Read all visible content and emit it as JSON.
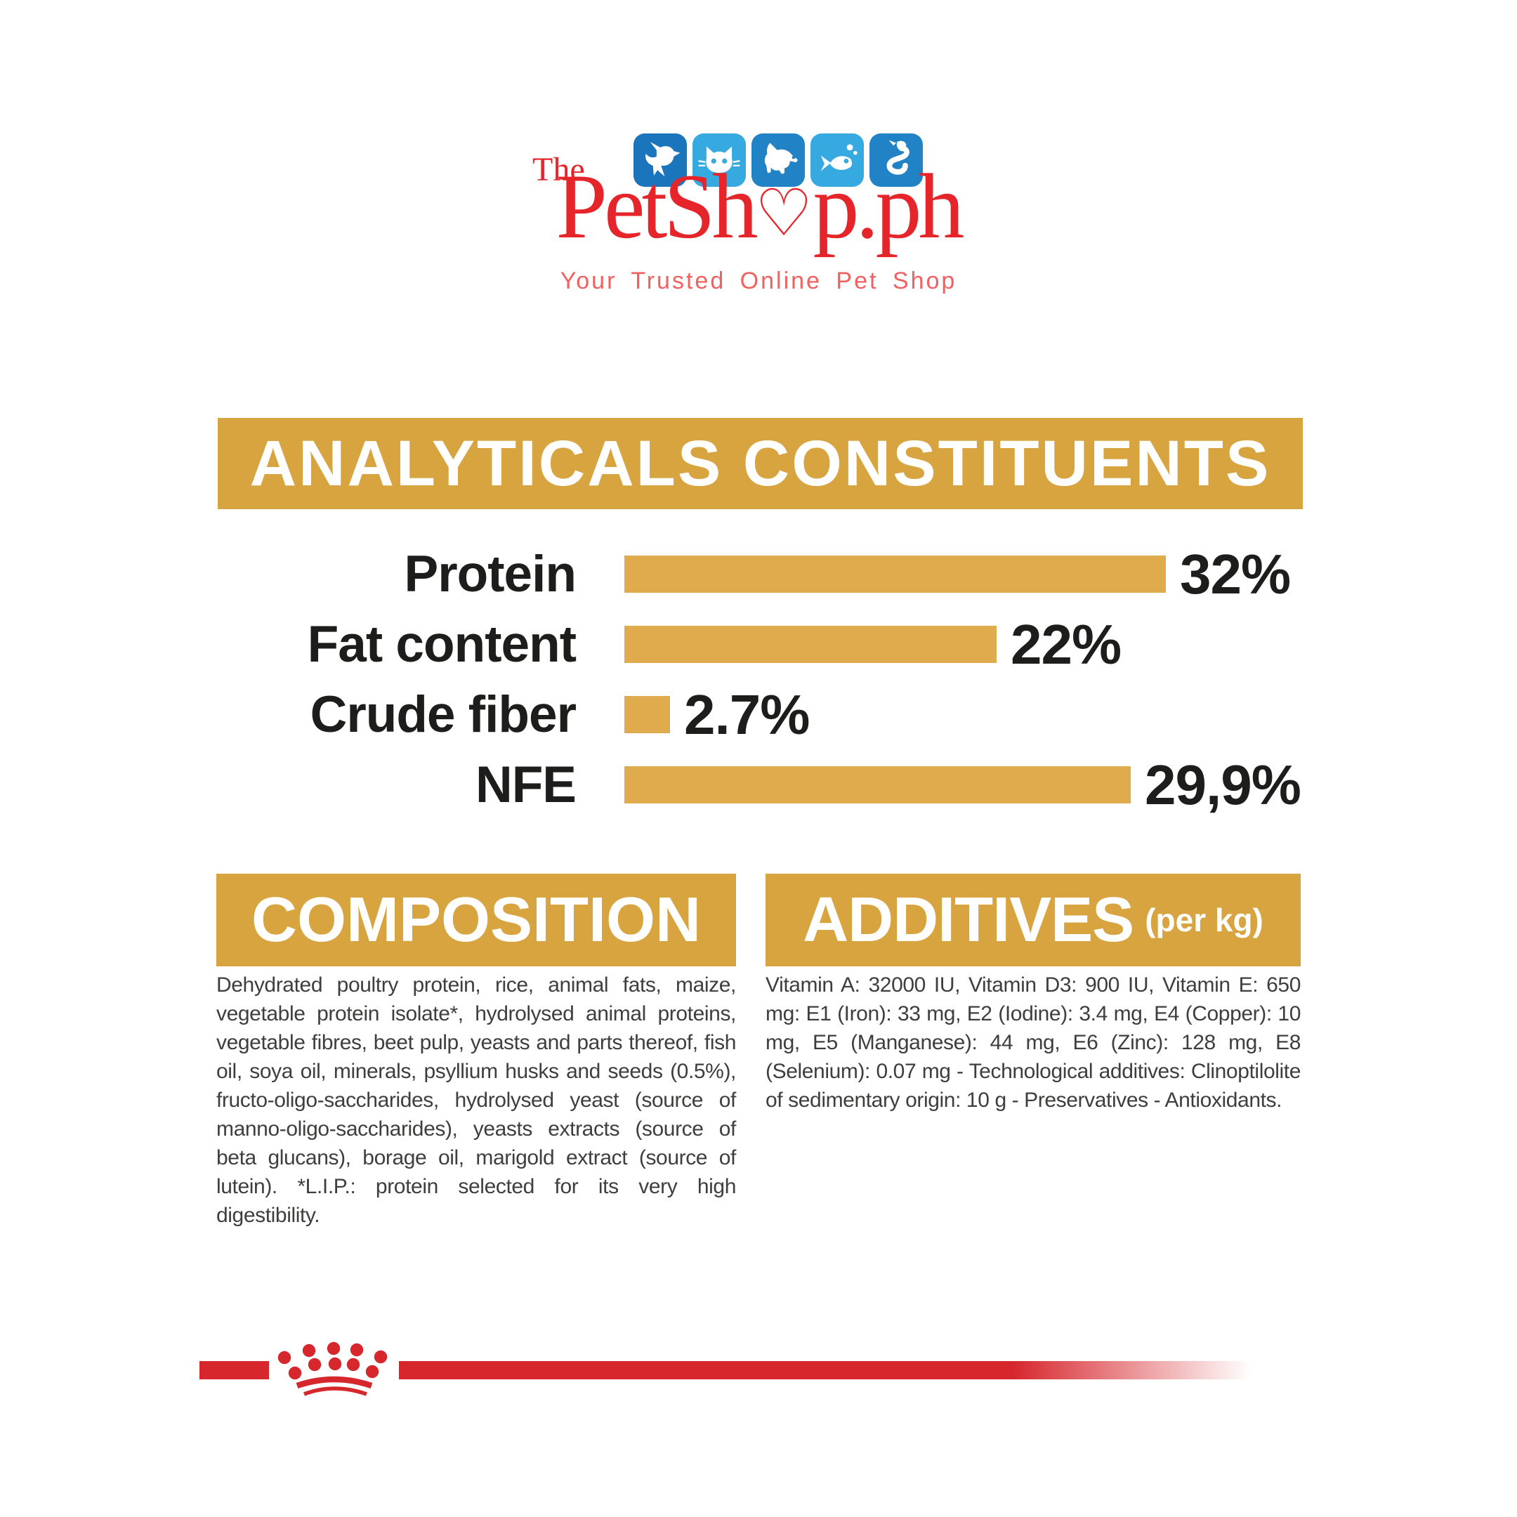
{
  "brand": {
    "prefix": "The",
    "wordmark_pre": "PetSh",
    "wordmark_heart": "♡",
    "wordmark_post": "p.ph",
    "tagline": "Your Trusted Online Pet Shop",
    "icons": [
      {
        "name": "bird",
        "color": "#1b75bc"
      },
      {
        "name": "cat",
        "color": "#36a9e1"
      },
      {
        "name": "dog",
        "color": "#2183c6"
      },
      {
        "name": "fish",
        "color": "#36a9e1"
      },
      {
        "name": "snake",
        "color": "#2183c6"
      }
    ],
    "logo_red": "#e6252b",
    "tagline_red": "#f2605f"
  },
  "analyticals": {
    "title": "ANALYTICALS CONSTITUENTS"
  },
  "chart_data": {
    "type": "bar",
    "orientation": "horizontal",
    "title": "ANALYTICALS CONSTITUENTS",
    "categories": [
      "Protein",
      "Fat content",
      "Crude fiber",
      "NFE"
    ],
    "values": [
      32,
      22,
      2.7,
      29.9
    ],
    "value_labels": [
      "32%",
      "22%",
      "2.7%",
      "29,9%"
    ],
    "unit": "%",
    "xlim": [
      0,
      33
    ],
    "grid": false,
    "bar_color": "#e0ab4c",
    "label_color": "#1d1d1b"
  },
  "composition": {
    "title": "COMPOSITION",
    "body": "Dehydrated poultry protein, rice, animal fats, maize, vegetable protein isolate*, hydrolysed animal proteins, vegetable fibres, beet pulp, yeasts and parts thereof, fish oil, soya oil, minerals, psyllium husks and seeds (0.5%), fructo-oligo-saccharides, hydrolysed yeast (source of manno-oligo-saccharides), yeasts extracts (source of beta glucans), borage oil, marigold extract (source of lutein). *L.I.P.: protein selected for its very high digestibility."
  },
  "additives": {
    "title": "ADDITIVES",
    "unit": "(per kg)",
    "body": "Vitamin A: 32000 IU, Vitamin D3: 900 IU, Vitamin E: 650 mg: E1 (Iron): 33 mg, E2 (Iodine): 3.4 mg, E4 (Copper): 10 mg, E5 (Manganese): 44 mg, E6 (Zinc): 128 mg, E8 (Selenium): 0.07 mg - Technological additives: Clinoptilolite of sedimentary origin: 10 g - Preservatives - Antioxidants."
  },
  "footer": {
    "brand_mark": "royal-canin-crown",
    "color": "#d6272d"
  },
  "colors": {
    "banner_gold": "#d8a440",
    "bar_gold": "#e0ab4c",
    "heading_text": "#ffffff",
    "chart_text": "#1d1d1b",
    "body_text": "#3e3e3d",
    "background": "#ffffff"
  }
}
